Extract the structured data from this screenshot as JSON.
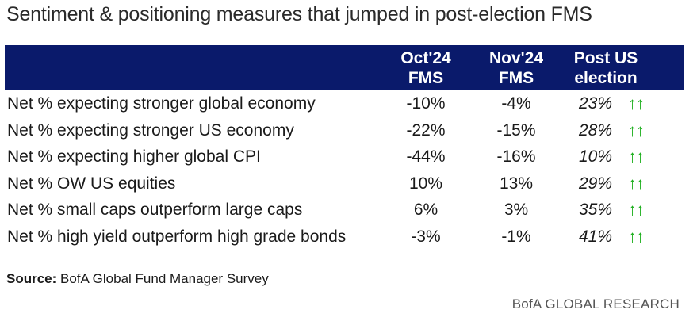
{
  "title": "Sentiment & positioning measures that jumped in post-election FMS",
  "table": {
    "headers": {
      "col1_line1": "Oct'24",
      "col1_line2": "FMS",
      "col2_line1": "Nov'24",
      "col2_line2": "FMS",
      "col3_line1": "Post US",
      "col3_line2": "election"
    },
    "rows": [
      {
        "label": "Net % expecting stronger global economy",
        "oct": "-10%",
        "nov": "-4%",
        "post": "23%",
        "arrow": "↑↑"
      },
      {
        "label": "Net % expecting stronger US economy",
        "oct": "-22%",
        "nov": "-15%",
        "post": "28%",
        "arrow": "↑↑"
      },
      {
        "label": "Net % expecting higher global CPI",
        "oct": "-44%",
        "nov": "-16%",
        "post": "10%",
        "arrow": "↑↑"
      },
      {
        "label": "Net % OW US equities",
        "oct": "10%",
        "nov": "13%",
        "post": "29%",
        "arrow": "↑↑"
      },
      {
        "label": "Net % small caps outperform large caps",
        "oct": "6%",
        "nov": "3%",
        "post": "35%",
        "arrow": "↑↑"
      },
      {
        "label": "Net % high yield outperform high grade bonds",
        "oct": "-3%",
        "nov": "-1%",
        "post": "41%",
        "arrow": "↑↑"
      }
    ]
  },
  "footer": {
    "source_label": "Source:",
    "source_text": " BofA Global Fund Manager Survey",
    "brand": "BofA GLOBAL RESEARCH"
  },
  "colors": {
    "header_bg": "#0a1a6b",
    "arrow": "#21b021"
  },
  "icons": {
    "arrow": "double-up-arrow-icon"
  }
}
